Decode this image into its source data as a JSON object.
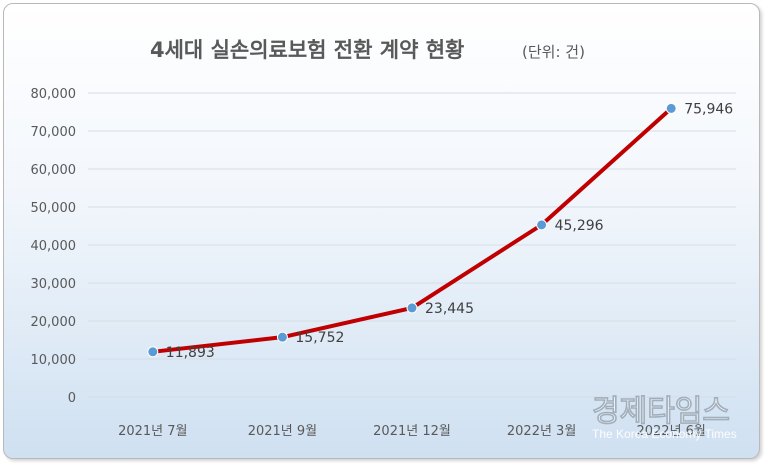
{
  "chart_data": {
    "type": "line",
    "title": "4세대 실손의료보험 전환 계약 현황",
    "unit_label": "(단위: 건)",
    "xlabel": "",
    "ylabel": "",
    "categories": [
      "2021년 7월",
      "2021년 9월",
      "2021년 12월",
      "2022년 3월",
      "2022년 6월"
    ],
    "values": [
      11893,
      15752,
      23445,
      45296,
      75946
    ],
    "value_labels": [
      "11,893",
      "15,752",
      "23,445",
      "45,296",
      "75,946"
    ],
    "ylim": [
      0,
      80000
    ],
    "yticks": [
      0,
      10000,
      20000,
      30000,
      40000,
      50000,
      60000,
      70000,
      80000
    ],
    "ytick_labels": [
      "0",
      "10,000",
      "20,000",
      "30,000",
      "40,000",
      "50,000",
      "60,000",
      "70,000",
      "80,000"
    ],
    "grid": true,
    "legend": "none",
    "line_color": "#C00000",
    "marker_color": "#5B9BD5"
  },
  "watermark": {
    "name": "경제타임스",
    "subtitle": "The Korea Economy Times"
  }
}
